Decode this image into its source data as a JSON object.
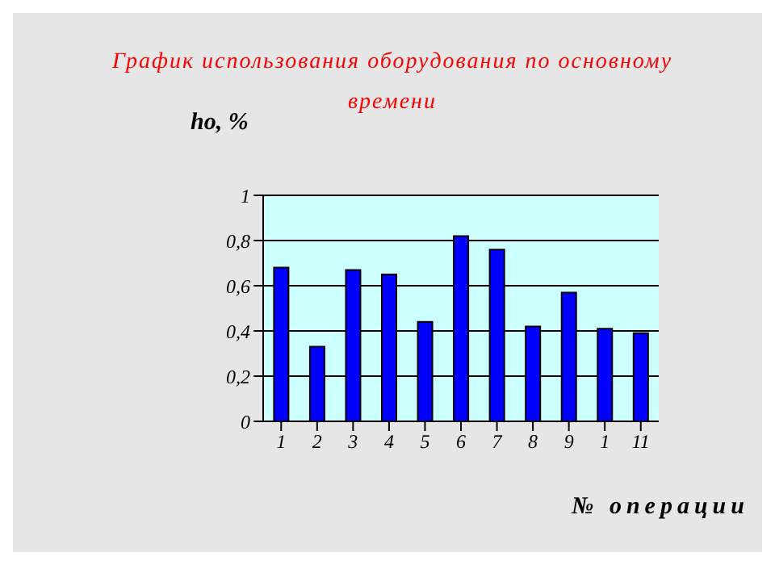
{
  "chart_data": {
    "type": "bar",
    "title": "График использования оборудования по основному времени",
    "ylabel": "ho, %",
    "xlabel": "№ операции",
    "categories": [
      "1",
      "2",
      "3",
      "4",
      "5",
      "6",
      "7",
      "8",
      "9",
      "1",
      "11"
    ],
    "values": [
      0.68,
      0.33,
      0.67,
      0.65,
      0.44,
      0.82,
      0.76,
      0.42,
      0.57,
      0.41,
      0.39
    ],
    "color": "#0000ff",
    "ylim": [
      0,
      1
    ],
    "yticks": [
      0,
      {
        "value": 0.2,
        "label": "0,2"
      },
      {
        "value": 0.4,
        "label": "0,4"
      },
      {
        "value": 0.6,
        "label": "0,6"
      },
      {
        "value": 0.8,
        "label": "0,8"
      },
      1
    ],
    "grid": "y",
    "legend": false
  }
}
